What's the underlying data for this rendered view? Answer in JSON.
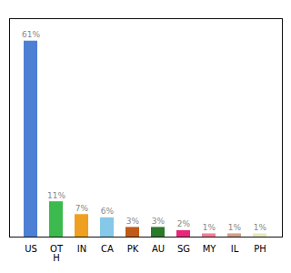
{
  "chart_data": {
    "type": "bar",
    "categories": [
      "US",
      "OT\nH",
      "IN",
      "CA",
      "PK",
      "AU",
      "SG",
      "MY",
      "IL",
      "PH"
    ],
    "values": [
      61,
      11,
      7,
      6,
      3,
      3,
      2,
      1,
      1,
      1
    ],
    "value_labels": [
      "61%",
      "11%",
      "7%",
      "6%",
      "3%",
      "3%",
      "2%",
      "1%",
      "1%",
      "1%"
    ],
    "colors": [
      "#4d7fd4",
      "#3dba4e",
      "#f0a020",
      "#85c8e8",
      "#c05a18",
      "#2a7a2a",
      "#e8277a",
      "#f08090",
      "#d4a090",
      "#e8e8c0"
    ],
    "ylim": [
      0,
      68
    ],
    "data_labels": true,
    "tick_labels": "x"
  }
}
